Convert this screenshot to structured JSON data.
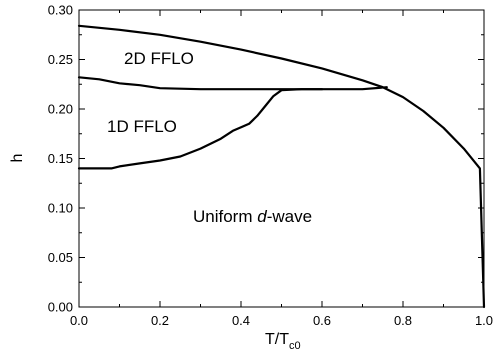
{
  "chart_data": {
    "type": "line",
    "xlabel": "T/T",
    "xlabel_sub": "c0",
    "ylabel": "h",
    "xlim": [
      0.0,
      1.0
    ],
    "ylim": [
      0.0,
      0.3
    ],
    "x_ticks": [
      "0.0",
      "0.2",
      "0.4",
      "0.6",
      "0.8",
      "1.0"
    ],
    "y_ticks": [
      "0.00",
      "0.05",
      "0.10",
      "0.15",
      "0.20",
      "0.25",
      "0.30"
    ],
    "grid": false,
    "annotations": {
      "fflo_2d": "2D FFLO",
      "fflo_1d": "1D FFLO",
      "uniform_prefix": "Uniform ",
      "uniform_italic": "d",
      "uniform_suffix": "-wave"
    },
    "series": [
      {
        "x": [
          0.0,
          0.1,
          0.2,
          0.3,
          0.4,
          0.5,
          0.6,
          0.7,
          0.75,
          0.8,
          0.85,
          0.9,
          0.95,
          0.99,
          1.0
        ],
        "y": [
          0.284,
          0.28,
          0.275,
          0.268,
          0.26,
          0.251,
          0.241,
          0.229,
          0.222,
          0.212,
          0.198,
          0.181,
          0.16,
          0.14,
          0.0
        ]
      },
      {
        "x": [
          0.0,
          0.05,
          0.1,
          0.15,
          0.2,
          0.3,
          0.4,
          0.5,
          0.6,
          0.7,
          0.76
        ],
        "y": [
          0.232,
          0.23,
          0.226,
          0.224,
          0.221,
          0.22,
          0.22,
          0.22,
          0.22,
          0.22,
          0.222
        ]
      },
      {
        "x": [
          0.0,
          0.08,
          0.1,
          0.15,
          0.2,
          0.25,
          0.3,
          0.35,
          0.38,
          0.42,
          0.44,
          0.46,
          0.48,
          0.5,
          0.55,
          0.6
        ],
        "y": [
          0.14,
          0.14,
          0.142,
          0.145,
          0.148,
          0.152,
          0.16,
          0.17,
          0.178,
          0.185,
          0.193,
          0.203,
          0.213,
          0.219,
          0.22,
          0.22
        ]
      }
    ]
  }
}
